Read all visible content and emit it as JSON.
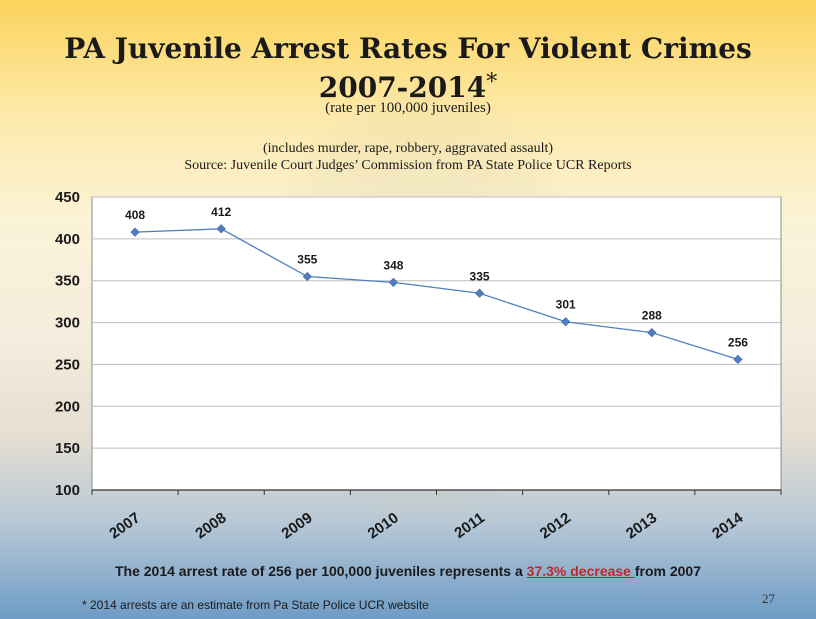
{
  "slide": {
    "title_line1": "PA Juvenile Arrest Rates For Violent Crimes",
    "title_line2": "2007-2014",
    "title_asterisk": "*",
    "subtitle": "(rate per 100,000 juveniles)",
    "note_line1": "(includes murder, rape, robbery, aggravated assault)",
    "note_line2": "Source:  Juvenile Court Judges’ Commission from PA State Police UCR Reports",
    "summary_pre": "The 2014 arrest rate of 256 per 100,000 juveniles represents  a ",
    "summary_highlight": "37.3% decrease ",
    "summary_post": "from 2007",
    "footnote": "* 2014 arrests are an estimate from Pa State Police UCR website",
    "page_number": "27"
  },
  "chart_data": {
    "type": "line",
    "categories": [
      "2007",
      "2008",
      "2009",
      "2010",
      "2011",
      "2012",
      "2013",
      "2014"
    ],
    "values": [
      408,
      412,
      355,
      348,
      335,
      301,
      288,
      256
    ],
    "data_labels": [
      "408",
      "412",
      "355",
      "348",
      "335",
      "301",
      "288",
      "256"
    ],
    "ylim": [
      100,
      450
    ],
    "yticks": [
      100,
      150,
      200,
      250,
      300,
      350,
      400,
      450
    ],
    "grid": true,
    "legend": "none",
    "line_color": "#4f7fbf",
    "marker": "diamond"
  },
  "colors": {
    "highlight": "#c0282d",
    "plot_background": "#ffffff",
    "gridline": "#bdbdbd"
  }
}
